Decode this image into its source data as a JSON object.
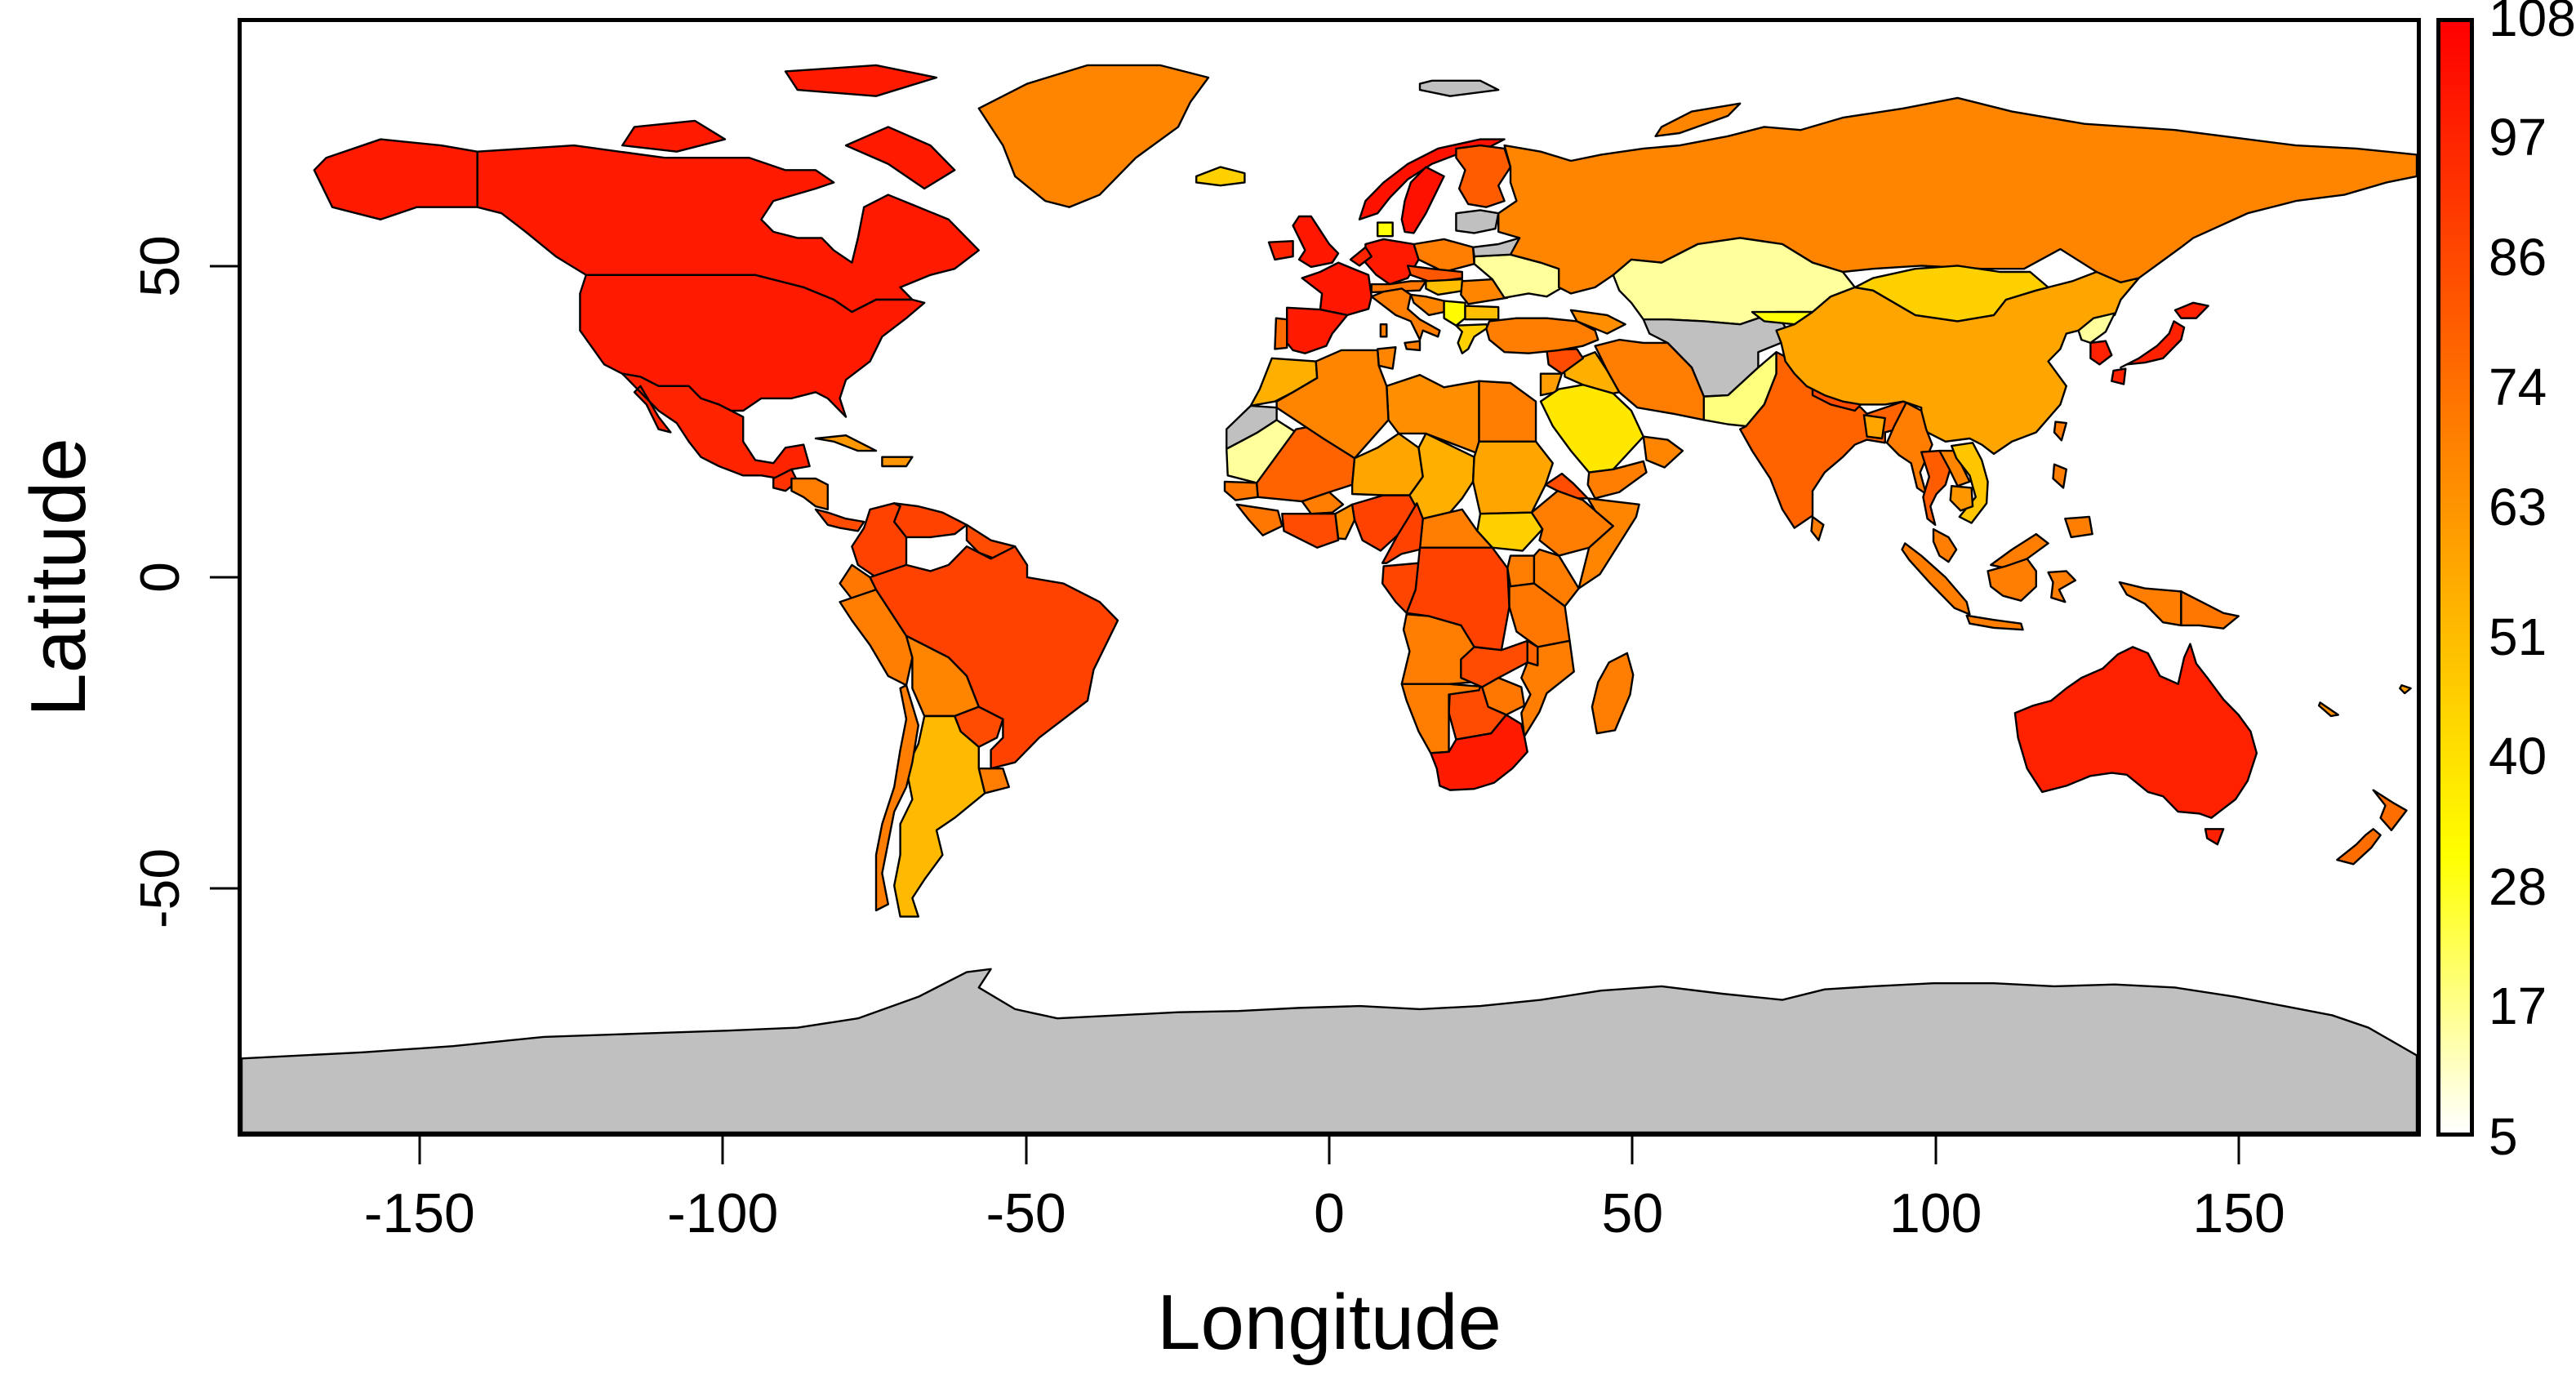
{
  "figure": {
    "background_color": "#FFFFFF",
    "plot_border_color": "#000000",
    "ocean_color": "#FFFFFF"
  },
  "axes": {
    "x": {
      "label": "Longitude",
      "ticks": [
        -150,
        -100,
        -50,
        0,
        50,
        100,
        150
      ],
      "range": [
        -180,
        180
      ]
    },
    "y": {
      "label": "Latitude",
      "ticks": [
        50,
        0,
        -50
      ],
      "range": [
        -90,
        90
      ]
    }
  },
  "legend": {
    "ticks": [
      108,
      97,
      86,
      74,
      63,
      51,
      40,
      28,
      17,
      5
    ],
    "min": 5,
    "max": 108,
    "gradient_stops": [
      "#FFFFFF 0%",
      "#FFFF00 25%",
      "#FFAA00 50%",
      "#FF5500 75%",
      "#FF0000 100%"
    ],
    "na_color": "#C0C0C0"
  },
  "chart_data": {
    "type": "heatmap",
    "subtype": "world-choropleth",
    "title": "",
    "xlabel": "Longitude",
    "ylabel": "Latitude",
    "xlim": [
      -180,
      180
    ],
    "ylim": [
      -90,
      90
    ],
    "colorbar": {
      "tick_values": [
        5,
        17,
        28,
        40,
        51,
        63,
        74,
        86,
        97,
        108
      ],
      "low_color": "white",
      "mid_colors": [
        "yellow",
        "orange"
      ],
      "high_color": "red",
      "na_color": "gray"
    },
    "values_estimated_from_colors": true,
    "countries": [
      {
        "id": "antarctica",
        "name": "Antarctica",
        "value": null
      },
      {
        "id": "svalbard",
        "name": "Svalbard",
        "value": null
      },
      {
        "id": "canada",
        "name": "Canada",
        "value": 100
      },
      {
        "id": "alaska",
        "name": "United States (Alaska)",
        "value": 100
      },
      {
        "id": "arctic1",
        "name": "Canada (Baffin Island)",
        "value": 100
      },
      {
        "id": "arctic2",
        "name": "Canada (Victoria Island)",
        "value": 100
      },
      {
        "id": "arctic3",
        "name": "Canada (Ellesmere Island)",
        "value": 100
      },
      {
        "id": "usa",
        "name": "United States",
        "value": 100
      },
      {
        "id": "mexico",
        "name": "Mexico",
        "value": 97
      },
      {
        "id": "greenland",
        "name": "Greenland",
        "value": 68
      },
      {
        "id": "iceland",
        "name": "Iceland",
        "value": 45
      },
      {
        "id": "guatemala",
        "name": "Guatemala",
        "value": 93
      },
      {
        "id": "honduras_nicaragua",
        "name": "Honduras / Nicaragua",
        "value": 70
      },
      {
        "id": "costarica_panama",
        "name": "Costa Rica / Panama",
        "value": 85
      },
      {
        "id": "cuba",
        "name": "Cuba",
        "value": 62
      },
      {
        "id": "hispaniola",
        "name": "Haiti / Dominican Republic",
        "value": 63
      },
      {
        "id": "colombia",
        "name": "Colombia",
        "value": 88
      },
      {
        "id": "venezuela",
        "name": "Venezuela",
        "value": 88
      },
      {
        "id": "guianas",
        "name": "Guyana / Suriname",
        "value": 85
      },
      {
        "id": "ecuador",
        "name": "Ecuador",
        "value": 72
      },
      {
        "id": "peru",
        "name": "Peru",
        "value": 70
      },
      {
        "id": "brazil",
        "name": "Brazil",
        "value": 88
      },
      {
        "id": "bolivia",
        "name": "Bolivia",
        "value": 68
      },
      {
        "id": "paraguay",
        "name": "Paraguay",
        "value": 85
      },
      {
        "id": "uruguay",
        "name": "Uruguay",
        "value": 70
      },
      {
        "id": "argentina",
        "name": "Argentina",
        "value": 52
      },
      {
        "id": "chile",
        "name": "Chile",
        "value": 70
      },
      {
        "id": "norway",
        "name": "Norway",
        "value": 103
      },
      {
        "id": "sweden",
        "name": "Sweden",
        "value": 103
      },
      {
        "id": "finland",
        "name": "Finland",
        "value": 80
      },
      {
        "id": "denmark",
        "name": "Denmark",
        "value": 30
      },
      {
        "id": "uk",
        "name": "United Kingdom",
        "value": 101
      },
      {
        "id": "ireland",
        "name": "Ireland",
        "value": 97
      },
      {
        "id": "france",
        "name": "France",
        "value": 101
      },
      {
        "id": "spain",
        "name": "Spain",
        "value": 100
      },
      {
        "id": "portugal",
        "name": "Portugal",
        "value": 75
      },
      {
        "id": "germany",
        "name": "Germany",
        "value": 100
      },
      {
        "id": "benelux",
        "name": "Netherlands / Belgium",
        "value": 97
      },
      {
        "id": "poland",
        "name": "Poland",
        "value": 70
      },
      {
        "id": "czech_slovakia",
        "name": "Czechia / Slovakia",
        "value": 82
      },
      {
        "id": "austria_switzerland",
        "name": "Austria / Switzerland",
        "value": 72
      },
      {
        "id": "italy",
        "name": "Italy",
        "value": 70
      },
      {
        "id": "hungary",
        "name": "Hungary",
        "value": 50
      },
      {
        "id": "croatia_bosnia",
        "name": "Croatia / Bosnia",
        "value": 68
      },
      {
        "id": "serbia",
        "name": "Serbia",
        "value": 32
      },
      {
        "id": "greece",
        "name": "Greece",
        "value": 45
      },
      {
        "id": "bulgaria",
        "name": "Bulgaria",
        "value": 50
      },
      {
        "id": "romania",
        "name": "Romania",
        "value": 68
      },
      {
        "id": "ukraine",
        "name": "Ukraine",
        "value": 15
      },
      {
        "id": "belarus",
        "name": "Belarus",
        "value": null
      },
      {
        "id": "baltics",
        "name": "Baltic states",
        "value": null
      },
      {
        "id": "russia",
        "name": "Russia",
        "value": 68
      },
      {
        "id": "kazakhstan",
        "name": "Kazakhstan",
        "value": 15
      },
      {
        "id": "central_asia",
        "name": "Uzbekistan / Turkmenistan / Tajikistan / Afghanistan",
        "value": null
      },
      {
        "id": "kyrgyzstan",
        "name": "Kyrgyzstan",
        "value": 30
      },
      {
        "id": "pakistan",
        "name": "Pakistan",
        "value": 18
      },
      {
        "id": "iran",
        "name": "Iran",
        "value": 70
      },
      {
        "id": "iraq",
        "name": "Iraq",
        "value": 55
      },
      {
        "id": "syria",
        "name": "Syria",
        "value": 85
      },
      {
        "id": "turkey",
        "name": "Turkey",
        "value": 70
      },
      {
        "id": "jordan_israel",
        "name": "Jordan / Israel",
        "value": 60
      },
      {
        "id": "caucasus",
        "name": "Georgia / Azerbaijan",
        "value": 65
      },
      {
        "id": "saudi",
        "name": "Saudi Arabia",
        "value": 38
      },
      {
        "id": "yemen",
        "name": "Yemen",
        "value": 70
      },
      {
        "id": "oman",
        "name": "Oman",
        "value": 68
      },
      {
        "id": "india",
        "name": "India",
        "value": 78
      },
      {
        "id": "nepal",
        "name": "Nepal",
        "value": 85
      },
      {
        "id": "bangladesh",
        "name": "Bangladesh",
        "value": 58
      },
      {
        "id": "srilanka",
        "name": "Sri Lanka",
        "value": 70
      },
      {
        "id": "china",
        "name": "China",
        "value": 58
      },
      {
        "id": "mongolia",
        "name": "Mongolia",
        "value": 45
      },
      {
        "id": "nkorea",
        "name": "North Korea",
        "value": 15
      },
      {
        "id": "skorea",
        "name": "South Korea",
        "value": 98
      },
      {
        "id": "japan",
        "name": "Japan",
        "value": 98
      },
      {
        "id": "taiwan",
        "name": "Taiwan",
        "value": 70
      },
      {
        "id": "myanmar",
        "name": "Myanmar",
        "value": 70
      },
      {
        "id": "thailand",
        "name": "Thailand",
        "value": 80
      },
      {
        "id": "laos",
        "name": "Laos",
        "value": 68
      },
      {
        "id": "vietnam",
        "name": "Vietnam",
        "value": 48
      },
      {
        "id": "cambodia",
        "name": "Cambodia",
        "value": 62
      },
      {
        "id": "malaysia",
        "name": "Malaysia",
        "value": 70
      },
      {
        "id": "indonesia",
        "name": "Indonesia",
        "value": 70
      },
      {
        "id": "png",
        "name": "Papua New Guinea",
        "value": 72
      },
      {
        "id": "philippines",
        "name": "Philippines",
        "value": 70
      },
      {
        "id": "australia",
        "name": "Australia",
        "value": 98
      },
      {
        "id": "nz",
        "name": "New Zealand",
        "value": 75
      },
      {
        "id": "newcaledonia",
        "name": "New Caledonia",
        "value": 65
      },
      {
        "id": "fiji",
        "name": "Fiji",
        "value": 60
      },
      {
        "id": "morocco",
        "name": "Morocco",
        "value": 55
      },
      {
        "id": "wsahara",
        "name": "Western Sahara",
        "value": null
      },
      {
        "id": "mauritania",
        "name": "Mauritania",
        "value": 15
      },
      {
        "id": "senegal",
        "name": "Senegal",
        "value": 72
      },
      {
        "id": "guinea",
        "name": "Guinea / Sierra Leone / Liberia",
        "value": 72
      },
      {
        "id": "mali",
        "name": "Mali",
        "value": 78
      },
      {
        "id": "burkina",
        "name": "Burkina Faso",
        "value": 70
      },
      {
        "id": "cotedivoire_ghana",
        "name": "Cote d'Ivoire / Ghana",
        "value": 85
      },
      {
        "id": "togo_benin",
        "name": "Togo / Benin",
        "value": 65
      },
      {
        "id": "nigeria",
        "name": "Nigeria",
        "value": 88
      },
      {
        "id": "niger",
        "name": "Niger",
        "value": 58
      },
      {
        "id": "chad",
        "name": "Chad",
        "value": 55
      },
      {
        "id": "libya",
        "name": "Libya",
        "value": 65
      },
      {
        "id": "tunisia",
        "name": "Tunisia",
        "value": 68
      },
      {
        "id": "algeria",
        "name": "Algeria",
        "value": 68
      },
      {
        "id": "egypt",
        "name": "Egypt",
        "value": 70
      },
      {
        "id": "sudan",
        "name": "Sudan",
        "value": 58
      },
      {
        "id": "ssudan",
        "name": "South Sudan",
        "value": 45
      },
      {
        "id": "eritrea",
        "name": "Eritrea / Djibouti",
        "value": 85
      },
      {
        "id": "ethiopia",
        "name": "Ethiopia",
        "value": 70
      },
      {
        "id": "somalia",
        "name": "Somalia",
        "value": 68
      },
      {
        "id": "kenya",
        "name": "Kenya",
        "value": 70
      },
      {
        "id": "uganda",
        "name": "Uganda",
        "value": 70
      },
      {
        "id": "tanzania",
        "name": "Tanzania",
        "value": 72
      },
      {
        "id": "car",
        "name": "Central African Republic",
        "value": 70
      },
      {
        "id": "cameroon",
        "name": "Cameroon",
        "value": 88
      },
      {
        "id": "gabon_congo",
        "name": "Gabon / Congo",
        "value": 87
      },
      {
        "id": "drc",
        "name": "DR Congo",
        "value": 88
      },
      {
        "id": "angola",
        "name": "Angola",
        "value": 70
      },
      {
        "id": "zambia",
        "name": "Zambia",
        "value": 85
      },
      {
        "id": "malawi",
        "name": "Malawi",
        "value": 78
      },
      {
        "id": "mozambique",
        "name": "Mozambique",
        "value": 70
      },
      {
        "id": "zimbabwe",
        "name": "Zimbabwe",
        "value": 72
      },
      {
        "id": "botswana",
        "name": "Botswana",
        "value": 85
      },
      {
        "id": "namibia",
        "name": "Namibia",
        "value": 70
      },
      {
        "id": "southafrica",
        "name": "South Africa",
        "value": 100
      },
      {
        "id": "madagascar",
        "name": "Madagascar",
        "value": 70
      }
    ]
  }
}
